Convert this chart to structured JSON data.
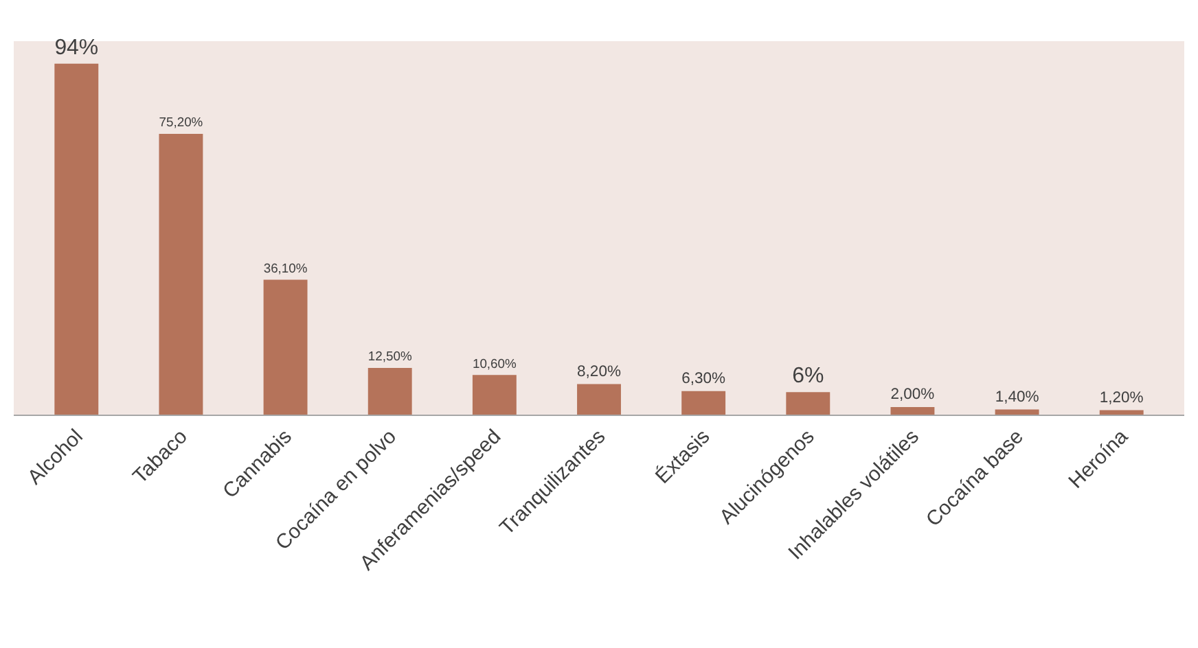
{
  "chart_data": {
    "type": "bar",
    "categories": [
      "Alcohol",
      "Tabaco",
      "Cannabis",
      "Cocaína en polvo",
      "Anferamenias/speed",
      "Tranquilizantes",
      "Éxtasis",
      "Alucinógenos",
      "Inhalables volátiles",
      "Cocaína base",
      "Heroína"
    ],
    "values": [
      94,
      75.2,
      36.1,
      12.5,
      10.6,
      8.2,
      6.3,
      6,
      2.0,
      1.4,
      1.2
    ],
    "value_labels": [
      "94%",
      "75,20%",
      "36,10%",
      "12,50%",
      "10,60%",
      "8,20%",
      "6,30%",
      "6%",
      "2,00%",
      "1,40%",
      "1,20%"
    ],
    "color": "#b5735a",
    "ylim": [
      0,
      100
    ],
    "grid": false,
    "legend": false,
    "tick_labels": "x"
  }
}
